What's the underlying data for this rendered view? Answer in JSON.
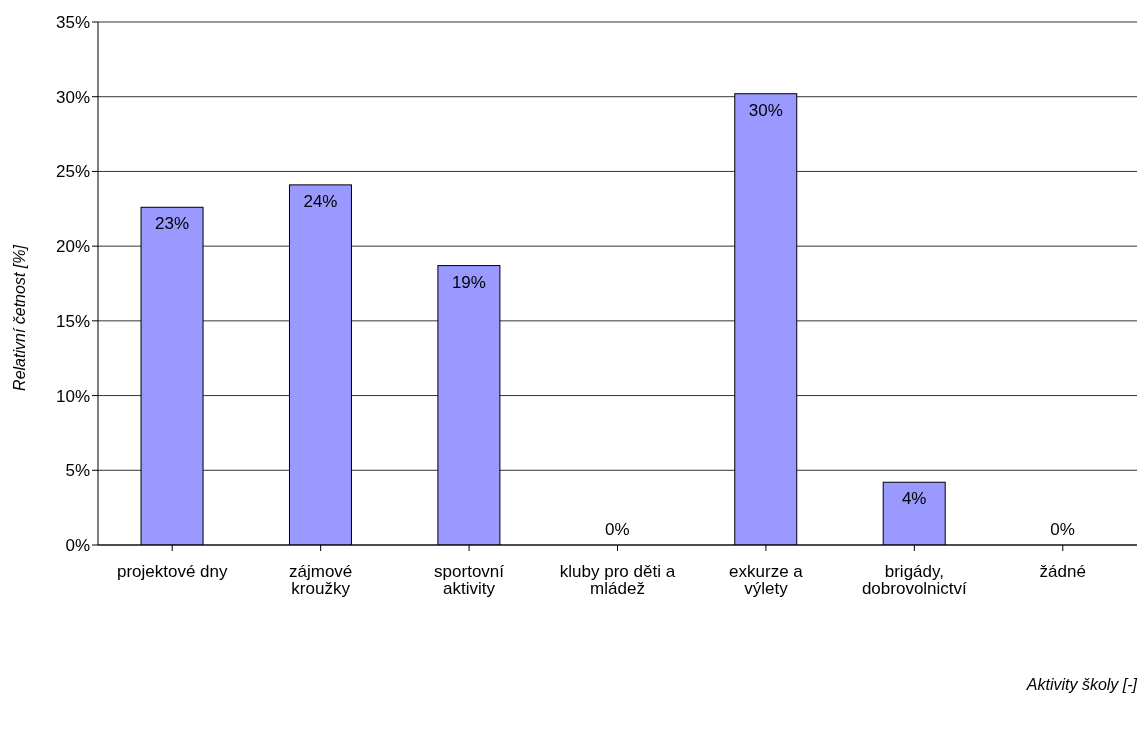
{
  "chart_data": {
    "type": "bar",
    "categories": [
      "projektové dny",
      "zájmové kroužky",
      "sportovní aktivity",
      "kluby pro děti a mládež",
      "exkurze a výlety",
      "brigády, dobrovolnictví",
      "žádné"
    ],
    "values": [
      22.6,
      24.1,
      18.7,
      0,
      30.2,
      4.2,
      0
    ],
    "value_labels": [
      "23%",
      "24%",
      "19%",
      "0%",
      "30%",
      "4%",
      "0%"
    ],
    "color": "#9999ff",
    "xlabel": "Aktivity školy [-]",
    "ylabel": "Relativní četnost [%]",
    "ylim": [
      0,
      35
    ],
    "yticks": [
      {
        "value": 0,
        "label": "0%"
      },
      {
        "value": 5,
        "label": "5%"
      },
      {
        "value": 10,
        "label": "10%"
      },
      {
        "value": 15,
        "label": "15%"
      },
      {
        "value": 20,
        "label": "20%"
      },
      {
        "value": 25,
        "label": "25%"
      },
      {
        "value": 30,
        "label": "30%"
      },
      {
        "value": 35,
        "label": "35%"
      }
    ],
    "grid": "y",
    "legend": false
  }
}
